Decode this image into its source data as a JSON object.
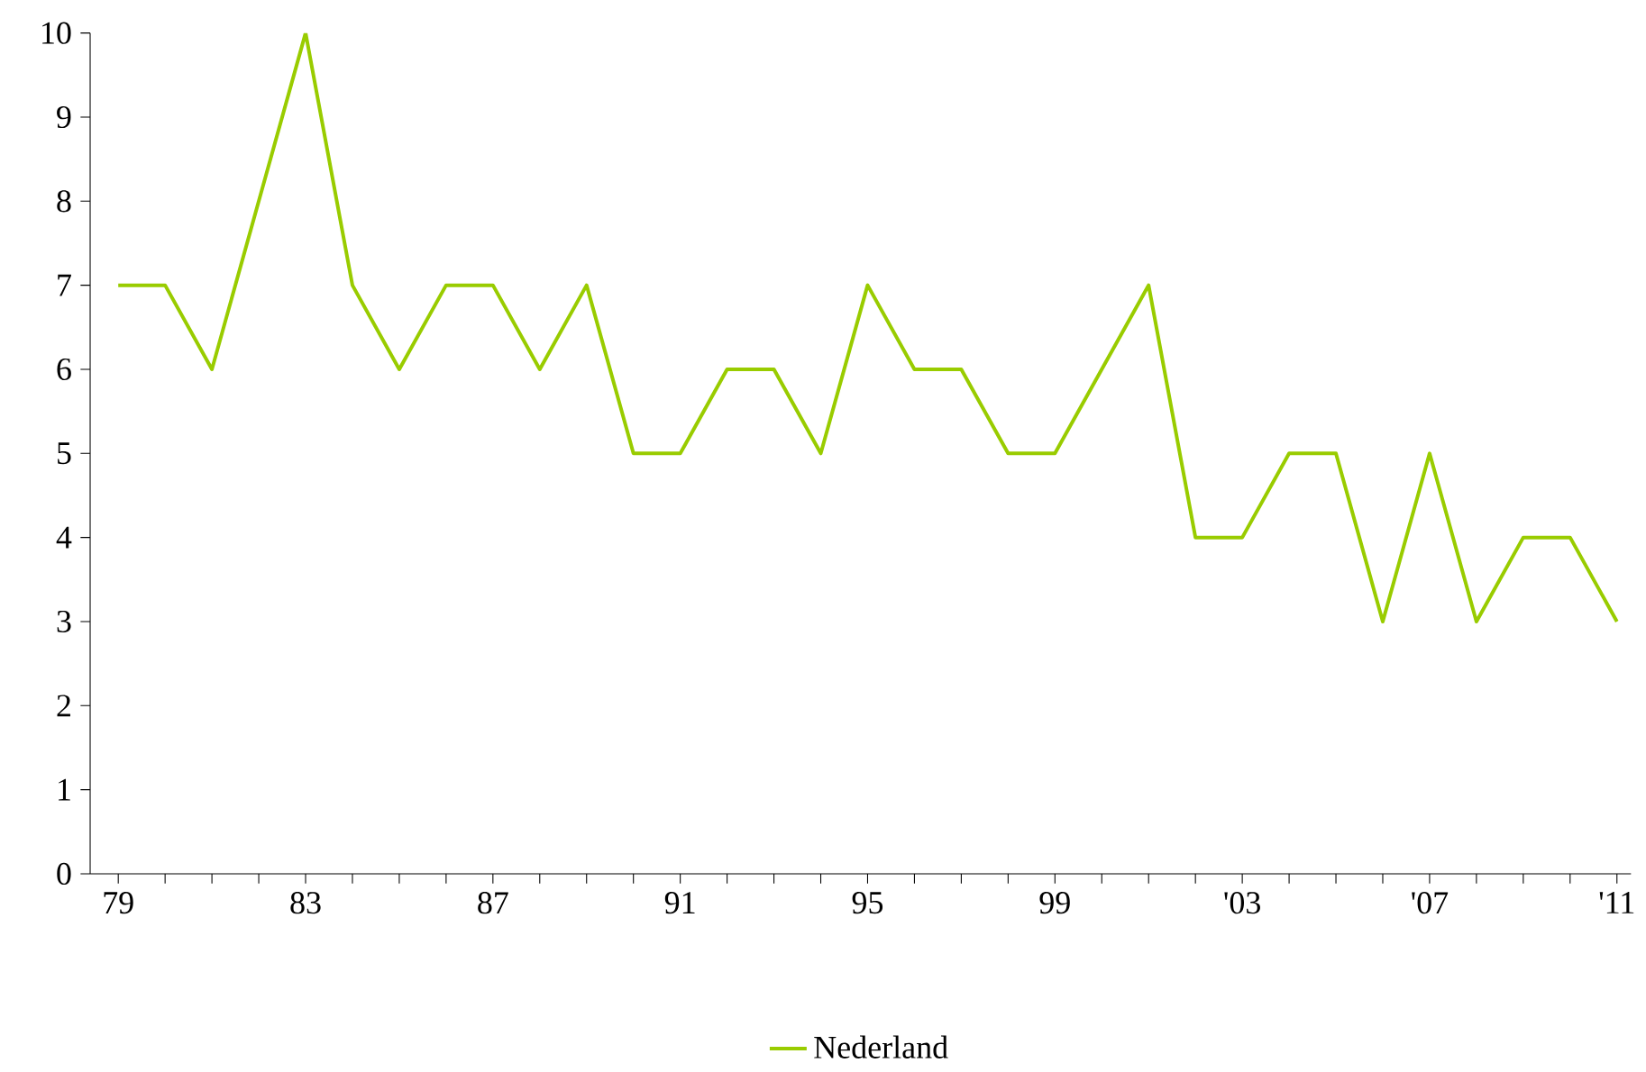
{
  "chart_data": {
    "type": "line",
    "categories": [
      "79",
      null,
      null,
      null,
      "83",
      null,
      null,
      null,
      "87",
      null,
      null,
      null,
      "91",
      null,
      null,
      null,
      "95",
      null,
      null,
      null,
      "99",
      null,
      null,
      null,
      "'03",
      null,
      null,
      null,
      "'07",
      null,
      null,
      null,
      "'11"
    ],
    "series": [
      {
        "name": "Nederland",
        "color": "#99cc00",
        "values": [
          7,
          7,
          6,
          8,
          10,
          7,
          6,
          7,
          7,
          6,
          7,
          5,
          5,
          6,
          6,
          5,
          7,
          6,
          6,
          5,
          5,
          6,
          7,
          4,
          4,
          5,
          5,
          3,
          5,
          3,
          4,
          4,
          3
        ]
      }
    ],
    "ylim": [
      0,
      10
    ],
    "yticks": [
      0,
      1,
      2,
      3,
      4,
      5,
      6,
      7,
      8,
      9,
      10
    ],
    "legend": "bottom",
    "grid": false,
    "marker": "none",
    "line_style": "solid"
  }
}
